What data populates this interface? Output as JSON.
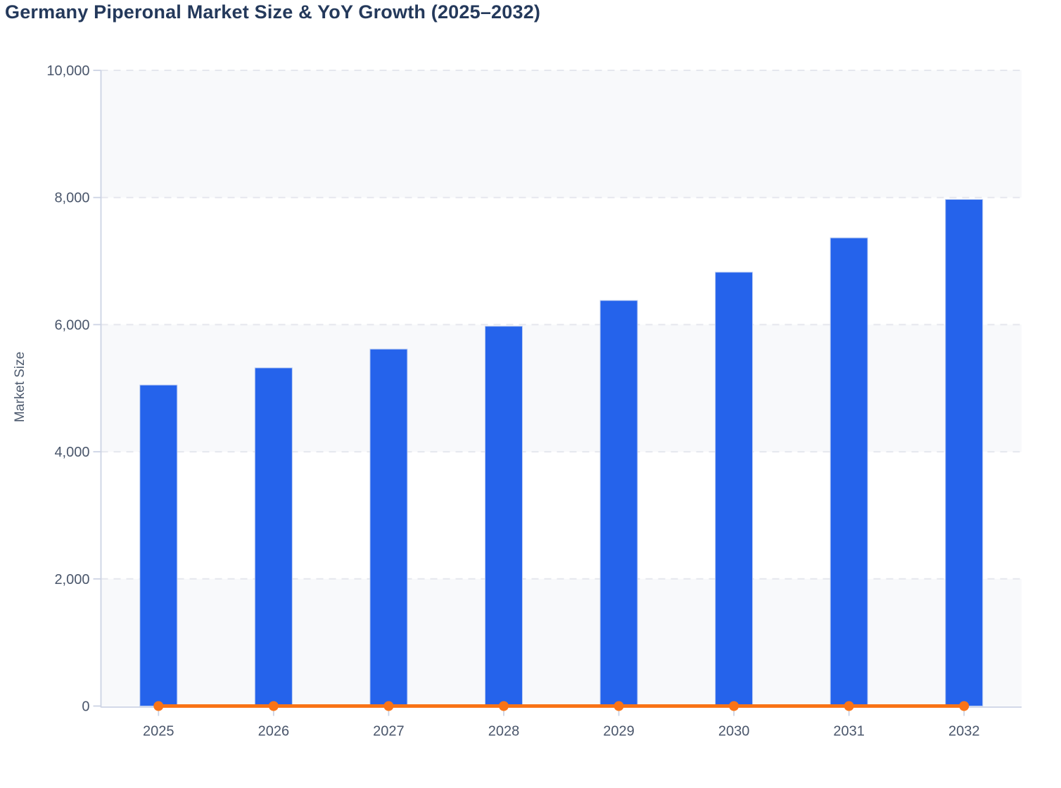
{
  "title": "Germany Piperonal Market Size & YoY Growth (2025–2032)",
  "chart_data": {
    "type": "bar",
    "subtype": "bar + flat line combo",
    "title": "Germany Piperonal Market Size & YoY Growth (2025–2032)",
    "categories": [
      "2025",
      "2026",
      "2027",
      "2028",
      "2029",
      "2030",
      "2031",
      "2032"
    ],
    "series": [
      {
        "name": "Market Size",
        "type": "bar",
        "color": "#2563eb",
        "values": [
          5050,
          5320,
          5615,
          5975,
          6380,
          6825,
          7365,
          7970
        ]
      },
      {
        "name": "YoY Growth",
        "type": "line",
        "color": "#f97316",
        "values": [
          0,
          0,
          0,
          0,
          0,
          0,
          0,
          0
        ],
        "note": "Orange line with circular markers renders flat at ~0 on the left axis; no growth-percent labels or secondary axis are visible in the image."
      }
    ],
    "xlabel": "",
    "ylabel": "Market Size",
    "ylim": [
      0,
      10000
    ],
    "yticks": [
      0,
      2000,
      4000,
      6000,
      8000,
      10000
    ],
    "ytick_labels": [
      "0",
      "2,000",
      "4,000",
      "6,000",
      "8,000",
      "10,000"
    ],
    "grid": "horizontal dashed gridlines at every y tick",
    "plot_bands": "alternating light horizontal bands: 0–2,000 / 4,000–6,000 / 8,000–10,000 shaded",
    "legend": "none"
  },
  "colors": {
    "bar": "#2563eb",
    "bar_edge": "#bccdf2",
    "line": "#f97316",
    "band": "#f8f9fb",
    "gridline": "#e5e7ee",
    "axis_line": "#ccd3e4",
    "tick_label": "#4a566b",
    "title": "#24395b",
    "axis_title": "#4d5a6e",
    "background": "#ffffff"
  }
}
